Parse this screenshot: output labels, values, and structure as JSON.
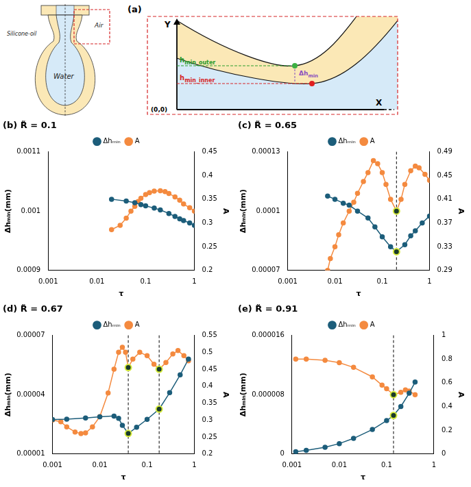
{
  "diagram": {
    "label": "(a)",
    "texts": {
      "oil": "Silicone-oil",
      "air": "Air",
      "water": "Water",
      "y_axis": "Y",
      "x_axis": "X",
      "origin": "(0,0)"
    },
    "h_min_outer": {
      "text": "h",
      "subscript": "min_outer"
    },
    "h_min_inner": {
      "text": "h",
      "subscript": "min_inner"
    },
    "delta_h_min": {
      "text": "Δh",
      "subscript": "min"
    }
  },
  "chart_data": [
    {
      "type": "line",
      "title": "(b) R̃ = 0.1",
      "x_label": "τ",
      "y_label": "Δhₘᵢₙ(mm)",
      "y2_label": "A",
      "log": "x",
      "grid": false,
      "legend": "top",
      "xlim": [
        0.001,
        1
      ],
      "xticks": [
        0.001,
        0.01,
        0.1,
        1
      ],
      "ylim": [
        0.0009,
        0.0011
      ],
      "yticks": [
        0.0009,
        0.001,
        0.0011
      ],
      "y2lim": [
        0.2,
        0.45
      ],
      "y2ticks": [
        0.2,
        0.25,
        0.3,
        0.35,
        0.4,
        0.45
      ],
      "series": [
        {
          "name": "Δhₘᵢₙ",
          "color": "#1c5d7a",
          "axis": "y",
          "marker": "circle",
          "x": [
            0.02,
            0.04,
            0.06,
            0.08,
            0.1,
            0.15,
            0.2,
            0.3,
            0.4,
            0.5,
            0.6,
            0.8,
            1
          ],
          "values": [
            0.00102,
            0.001017,
            0.001014,
            0.001011,
            0.001009,
            0.001005,
            0.001002,
            0.000996,
            0.000991,
            0.000987,
            0.000984,
            0.00098,
            0.000976
          ]
        },
        {
          "name": "A",
          "color": "#f48a3f",
          "axis": "y2",
          "marker": "circle",
          "x": [
            0.02,
            0.03,
            0.04,
            0.05,
            0.06,
            0.07,
            0.08,
            0.1,
            0.12,
            0.15,
            0.2,
            0.25,
            0.3,
            0.4,
            0.5,
            0.6,
            0.8,
            1
          ],
          "values": [
            0.286,
            0.295,
            0.31,
            0.325,
            0.335,
            0.345,
            0.352,
            0.36,
            0.364,
            0.367,
            0.368,
            0.366,
            0.362,
            0.355,
            0.348,
            0.34,
            0.332,
            0.325
          ]
        }
      ]
    },
    {
      "type": "line",
      "title": "(c) R̃ = 0.65",
      "x_label": "τ",
      "y_label": "Δhₘᵢₙ(mm)",
      "y2_label": "A",
      "log": "x",
      "grid": false,
      "legend": "top",
      "xlim": [
        0.001,
        1
      ],
      "xticks": [
        0.001,
        0.01,
        0.1,
        1
      ],
      "ylim": [
        7e-05,
        0.00013
      ],
      "yticks": [
        7e-05,
        0.0001,
        0.00013
      ],
      "y2lim": [
        0.29,
        0.49
      ],
      "y2ticks": [
        0.29,
        0.33,
        0.37,
        0.41,
        0.45,
        0.49
      ],
      "vlines": [
        0.2
      ],
      "series": [
        {
          "name": "Δhₘᵢₙ",
          "color": "#1c5d7a",
          "axis": "y",
          "marker": "circle",
          "x": [
            0.007,
            0.01,
            0.015,
            0.02,
            0.03,
            0.05,
            0.07,
            0.1,
            0.15,
            0.2,
            0.3,
            0.4,
            0.5,
            0.7,
            1
          ],
          "values": [
            0.0001076,
            0.000106,
            0.000104,
            0.000103,
            0.0001,
            9.65e-05,
            9.2e-05,
            8.7e-05,
            8.2e-05,
            7.95e-05,
            8.3e-05,
            8.75e-05,
            9e-05,
            9.4e-05,
            9.75e-05
          ]
        },
        {
          "name": "A",
          "color": "#f48a3f",
          "axis": "y2",
          "marker": "circle",
          "x": [
            0.007,
            0.008,
            0.01,
            0.012,
            0.015,
            0.02,
            0.025,
            0.03,
            0.04,
            0.05,
            0.065,
            0.08,
            0.1,
            0.12,
            0.15,
            0.2,
            0.25,
            0.3,
            0.4,
            0.5,
            0.6,
            0.8,
            1
          ],
          "values": [
            0.29,
            0.31,
            0.33,
            0.35,
            0.37,
            0.39,
            0.405,
            0.42,
            0.44,
            0.455,
            0.475,
            0.47,
            0.455,
            0.435,
            0.41,
            0.39,
            0.41,
            0.435,
            0.458,
            0.466,
            0.463,
            0.452,
            0.442
          ]
        }
      ]
    },
    {
      "type": "line",
      "title": "(d) R̃ = 0.67",
      "x_label": "τ",
      "y_label": "Δhₘᵢₙ(mm)",
      "y2_label": "A",
      "log": "x",
      "grid": false,
      "legend": "top",
      "xlim": [
        0.001,
        1
      ],
      "xticks": [
        0.001,
        0.01,
        0.1,
        1
      ],
      "ylim": [
        1e-05,
        7e-05
      ],
      "yticks": [
        1e-05,
        4e-05,
        7e-05
      ],
      "y2lim": [
        0.2,
        0.55
      ],
      "y2ticks": [
        0.2,
        0.25,
        0.3,
        0.35,
        0.4,
        0.45,
        0.5,
        0.55
      ],
      "vlines": [
        0.04,
        0.18
      ],
      "series": [
        {
          "name": "Δhₘᵢₙ",
          "color": "#1c5d7a",
          "axis": "y",
          "marker": "circle",
          "x": [
            0.001,
            0.002,
            0.005,
            0.01,
            0.02,
            0.025,
            0.03,
            0.04,
            0.06,
            0.1,
            0.18,
            0.3,
            0.5,
            0.75
          ],
          "values": [
            2.74e-05,
            2.76e-05,
            2.82e-05,
            2.88e-05,
            2.92e-05,
            2.8e-05,
            2.45e-05,
            2.04e-05,
            2.35e-05,
            2.75e-05,
            3.27e-05,
            4.1e-05,
            5e-05,
            5.8e-05
          ]
        },
        {
          "name": "A",
          "color": "#f48a3f",
          "axis": "y2",
          "marker": "circle",
          "x": [
            0.001,
            0.0015,
            0.002,
            0.003,
            0.004,
            0.005,
            0.007,
            0.01,
            0.015,
            0.02,
            0.025,
            0.03,
            0.035,
            0.04,
            0.05,
            0.07,
            0.1,
            0.14,
            0.18,
            0.25,
            0.35,
            0.45,
            0.6,
            0.75
          ],
          "values": [
            0.3,
            0.295,
            0.28,
            0.265,
            0.26,
            0.262,
            0.28,
            0.31,
            0.38,
            0.45,
            0.5,
            0.515,
            0.5,
            0.455,
            0.48,
            0.5,
            0.49,
            0.465,
            0.45,
            0.47,
            0.495,
            0.505,
            0.49,
            0.475
          ]
        }
      ]
    },
    {
      "type": "line",
      "title": "(e) R̃ = 0.91",
      "x_label": "τ",
      "y_label": "Δhₘᵢₙ(mm)",
      "y2_label": "A",
      "log": "x",
      "grid": false,
      "legend": "top",
      "xlim": [
        0.001,
        1
      ],
      "xticks": [
        0.001,
        0.01,
        0.1,
        1
      ],
      "ylim": [
        0,
        1.6e-05
      ],
      "yticks": [
        0,
        8e-06,
        1.6e-05
      ],
      "y2lim": [
        0,
        1
      ],
      "y2ticks": [
        0,
        0.2,
        0.4,
        0.6,
        0.8,
        1
      ],
      "vlines": [
        0.14
      ],
      "series": [
        {
          "name": "Δhₘᵢₙ",
          "color": "#1c5d7a",
          "axis": "y",
          "marker": "circle",
          "x": [
            0.0012,
            0.002,
            0.005,
            0.01,
            0.02,
            0.05,
            0.1,
            0.14,
            0.2,
            0.3,
            0.4
          ],
          "values": [
            3e-07,
            5e-07,
            9e-07,
            1.4e-06,
            2.1e-06,
            3.3e-06,
            4.5e-06,
            5.2e-06,
            6.4e-06,
            8.2e-06,
            9.7e-06
          ]
        },
        {
          "name": "A",
          "color": "#f48a3f",
          "axis": "y2",
          "marker": "circle",
          "x": [
            0.0012,
            0.002,
            0.005,
            0.01,
            0.02,
            0.05,
            0.08,
            0.1,
            0.14,
            0.2,
            0.25,
            0.3,
            0.4
          ],
          "values": [
            0.8,
            0.8,
            0.79,
            0.77,
            0.73,
            0.65,
            0.58,
            0.55,
            0.5,
            0.52,
            0.54,
            0.53,
            0.5
          ]
        }
      ]
    }
  ]
}
